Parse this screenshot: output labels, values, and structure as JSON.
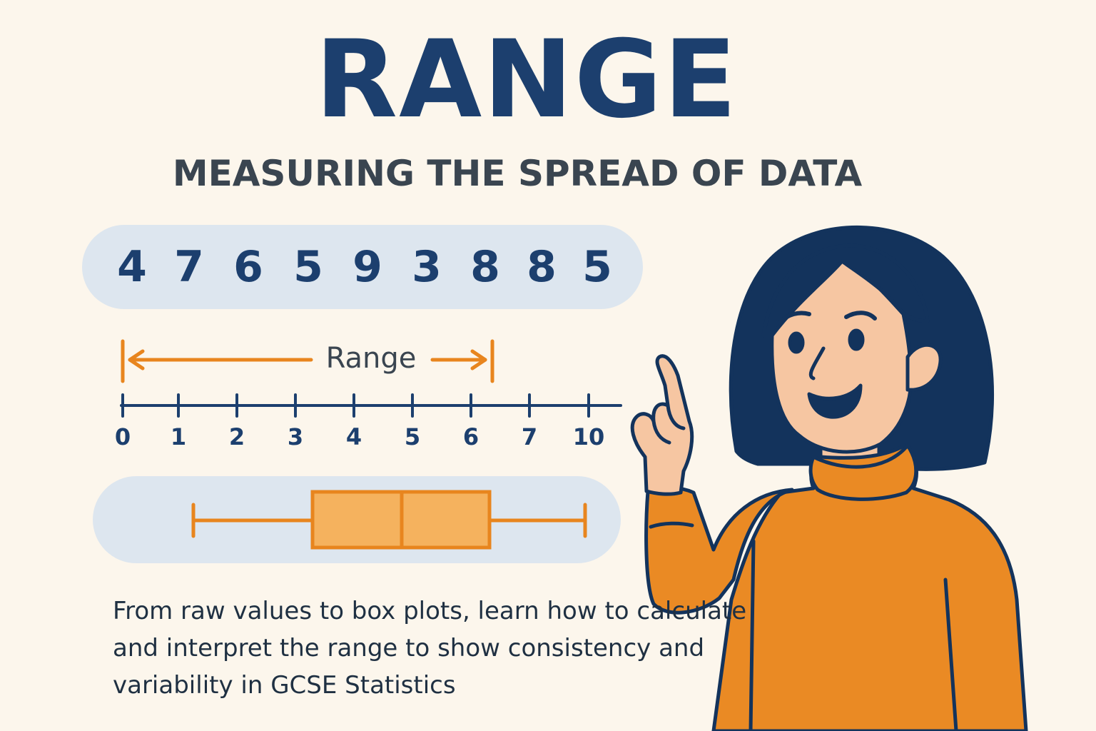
{
  "title": "RANGE",
  "subtitle": "MEASURING THE SPREAD OF DATA",
  "data_values": [
    "4",
    "7",
    "6",
    "5",
    "9",
    "3",
    "8",
    "8",
    "5"
  ],
  "range_label": "Range",
  "number_line": {
    "ticks": [
      "0",
      "1",
      "2",
      "3",
      "4",
      "5",
      "6",
      "7",
      "10"
    ]
  },
  "caption": "From raw values to box plots, learn how to calculate and interpret the range to show consistency and variability in GCSE Statistics",
  "colors": {
    "background": "#fcf6ec",
    "title": "#1c3f6e",
    "subtitle": "#3a4550",
    "accent_orange": "#e8851e",
    "pill": "#dde6ef",
    "box_fill": "#f5b25e",
    "sweater": "#ea8a24",
    "hair": "#13335c",
    "skin": "#f6c6a2"
  }
}
